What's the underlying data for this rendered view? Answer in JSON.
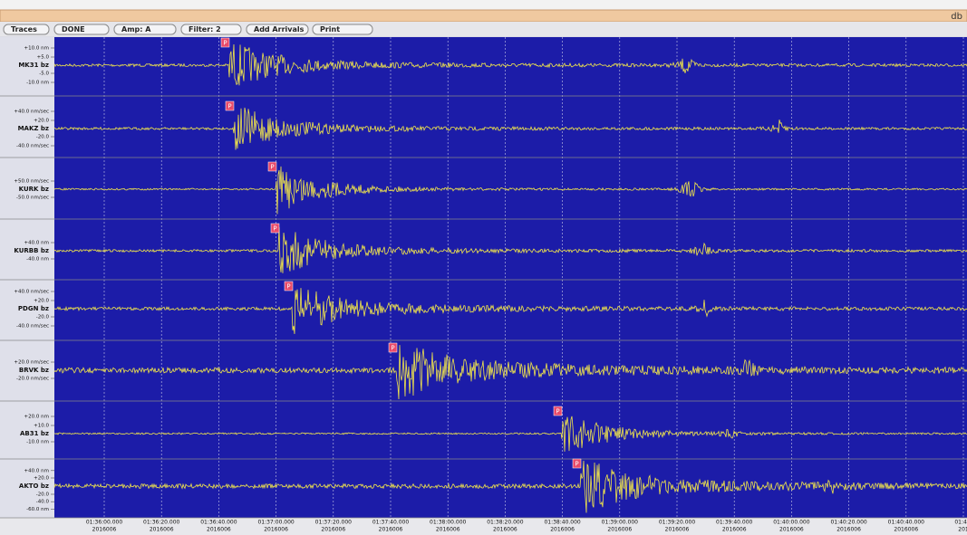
{
  "window": {
    "title": "db"
  },
  "toolbar": [
    "Traces",
    "DONE",
    "Amp: A",
    "Filter: 2",
    "Add Arrivals",
    "Print"
  ],
  "traces": [
    {
      "station": "MK31 bz",
      "amp_labels": [
        "+10.0 nm",
        "+5.0",
        "-5.0",
        "-10.0 nm"
      ],
      "pick": "P"
    },
    {
      "station": "MAKZ bz",
      "amp_labels": [
        "+40.0 nm/sec",
        "+20.0",
        "-20.0",
        "-40.0 nm/sec"
      ],
      "pick": "P"
    },
    {
      "station": "KURK bz",
      "amp_labels": [
        "+50.0 nm/sec",
        "-50.0 nm/sec"
      ],
      "pick": "P"
    },
    {
      "station": "KURBB bz",
      "amp_labels": [
        "+40.0 nm",
        "-40.0 nm"
      ],
      "pick": "P"
    },
    {
      "station": "PDGN bz",
      "amp_labels": [
        "+40.0 nm/sec",
        "+20.0",
        "-20.0",
        "-40.0 nm/sec"
      ],
      "pick": "P"
    },
    {
      "station": "BRVK bz",
      "amp_labels": [
        "+20.0 nm/sec",
        "-20.0 nm/sec"
      ],
      "pick": "P"
    },
    {
      "station": "AB31 bz",
      "amp_labels": [
        "+20.0 nm",
        "+10.0",
        "-10.0 nm"
      ],
      "pick": "P"
    },
    {
      "station": "AKTO bz",
      "amp_labels": [
        "+40.0 nm",
        "+20.0",
        "-20.0",
        "-40.0",
        "-60.0 nm"
      ],
      "pick": "P"
    }
  ],
  "time_axis": [
    {
      "time": "01:36:00.000",
      "date": "2016006"
    },
    {
      "time": "01:36:20.000",
      "date": "2016006"
    },
    {
      "time": "01:36:40.000",
      "date": "2016006"
    },
    {
      "time": "01:37:00.000",
      "date": "2016006"
    },
    {
      "time": "01:37:20.000",
      "date": "2016006"
    },
    {
      "time": "01:37:40.000",
      "date": "2016006"
    },
    {
      "time": "01:38:00.000",
      "date": "2016006"
    },
    {
      "time": "01:38:20.000",
      "date": "2016006"
    },
    {
      "time": "01:38:40.000",
      "date": "2016006"
    },
    {
      "time": "01:39:00.000",
      "date": "2016006"
    },
    {
      "time": "01:39:20.000",
      "date": "2016006"
    },
    {
      "time": "01:39:40.000",
      "date": "2016006"
    },
    {
      "time": "01:40:00.000",
      "date": "2016006"
    },
    {
      "time": "01:40:20.000",
      "date": "2016006"
    },
    {
      "time": "01:40:40.000",
      "date": "2016006"
    },
    {
      "time": "01:41:",
      "date": "201"
    }
  ]
}
